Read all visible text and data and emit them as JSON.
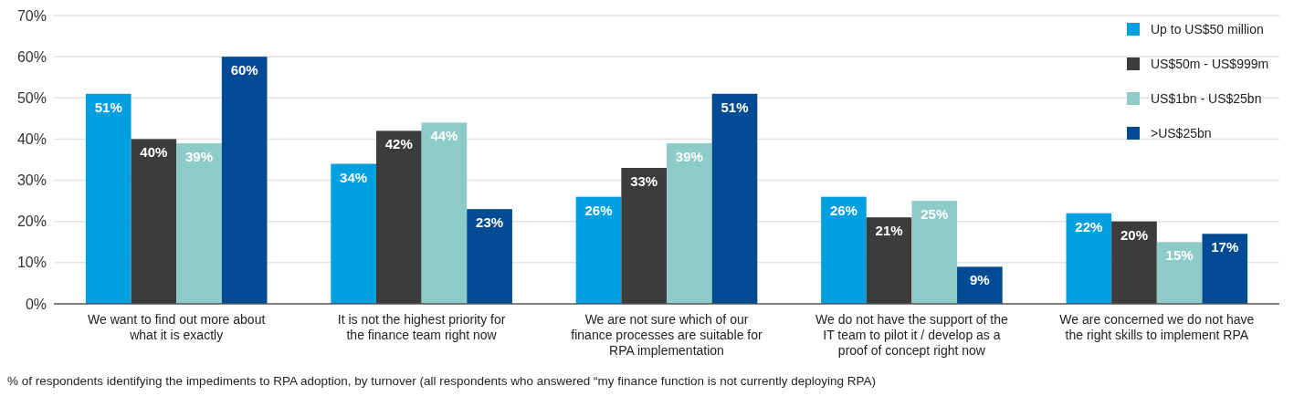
{
  "chart_data": {
    "type": "bar",
    "categories": [
      "We want to find out more about what it is exactly",
      "It is not the highest priority for the finance team right now",
      "We are not sure which of our finance processes are suitable for RPA implementation",
      "We do not have the support of the IT team to pilot it / develop as a proof of concept right now",
      "We are concerned we do not have the right skills to implement RPA"
    ],
    "series": [
      {
        "name": "Up to US$50 million",
        "color": "#009fe0",
        "values": [
          51,
          34,
          26,
          26,
          22
        ],
        "value_labels": [
          "51%",
          "34%",
          "26%",
          "26%",
          "22%"
        ]
      },
      {
        "name": "US$50m - US$999m",
        "color": "#3c3c3b",
        "values": [
          40,
          42,
          33,
          21,
          20
        ],
        "value_labels": [
          "40%",
          "42%",
          "33%",
          "21%",
          "20%"
        ]
      },
      {
        "name": "US$1bn - US$25bn",
        "color": "#8dcbc8",
        "values": [
          39,
          44,
          39,
          25,
          15
        ],
        "value_labels": [
          "39%",
          "44%",
          "39%",
          "25%",
          "15%"
        ]
      },
      {
        "name": ">US$25bn",
        "color": "#004b93",
        "values": [
          60,
          23,
          51,
          9,
          17
        ],
        "value_labels": [
          "60%",
          "23%",
          "51%",
          "9%",
          "17%"
        ]
      }
    ],
    "ylim": [
      0,
      70
    ],
    "yticks": [
      {
        "value": 0,
        "label": "0%"
      },
      {
        "value": 10,
        "label": "10%"
      },
      {
        "value": 20,
        "label": "20%"
      },
      {
        "value": 30,
        "label": "30%"
      },
      {
        "value": 40,
        "label": "40%"
      },
      {
        "value": 50,
        "label": "50%"
      },
      {
        "value": 60,
        "label": "60%"
      },
      {
        "value": 70,
        "label": "70%"
      }
    ],
    "grid": "y",
    "legend": "top right",
    "annotations": [
      "% of respondents identifying the impediments to RPA adoption, by turnover (all respondents who answered “my finance function is not currently deploying RPA)"
    ]
  }
}
